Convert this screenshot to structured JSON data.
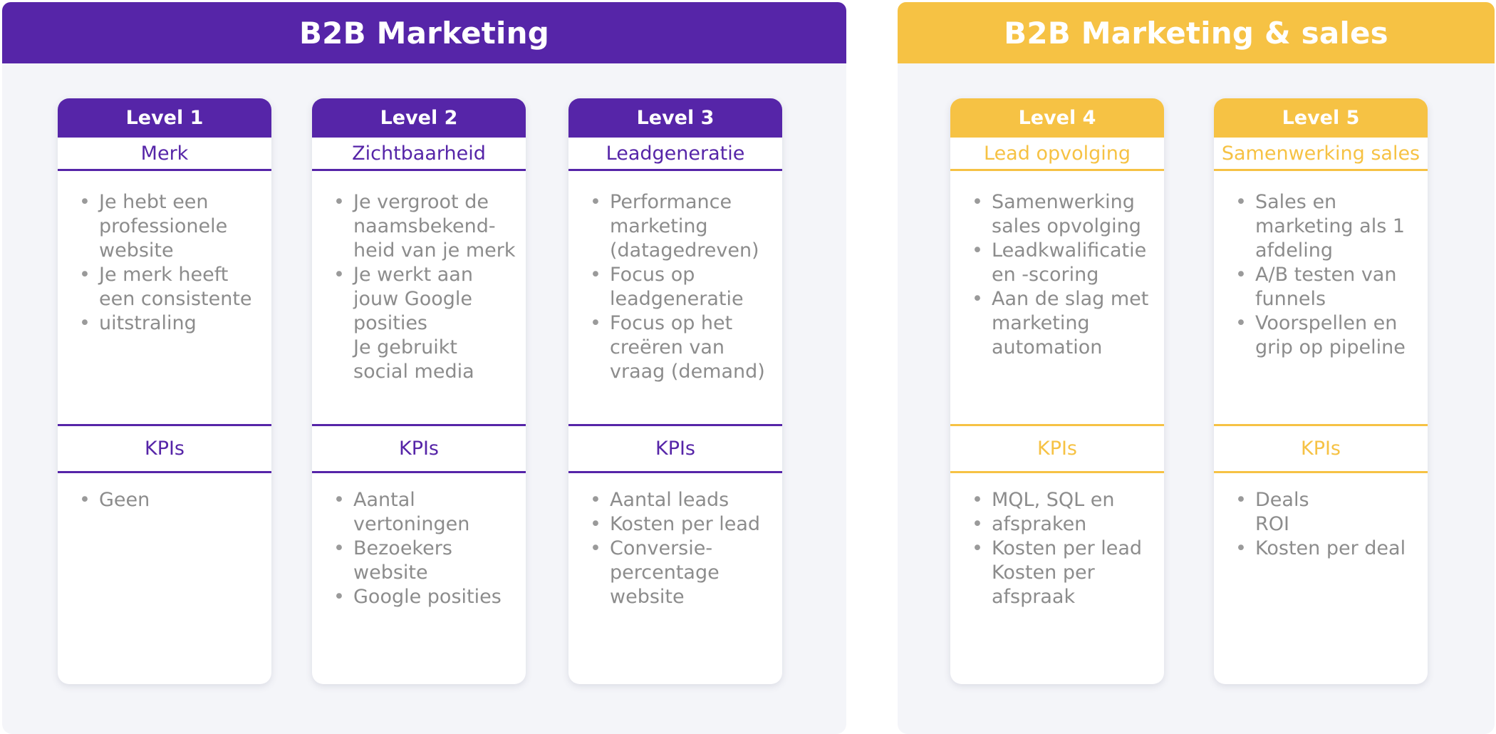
{
  "colors": {
    "purple": "#5625a8",
    "yellow": "#f6c244",
    "panel_bg": "#f4f5f9",
    "text_gray": "#8c8c8c"
  },
  "panels": [
    {
      "title": "B2B Marketing",
      "theme": "purple",
      "cards": [
        {
          "level": "Level 1",
          "subtitle": "Merk",
          "items": [
            {
              "text": "Je hebt een professionele website",
              "bullet": true
            },
            {
              "text": "Je merk heeft een consistente",
              "bullet": true
            },
            {
              "text": "uitstraling",
              "bullet": true
            }
          ],
          "kpi_title": "KPIs",
          "kpis": [
            {
              "text": "Geen",
              "bullet": true
            }
          ]
        },
        {
          "level": "Level 2",
          "subtitle": "Zichtbaarheid",
          "items": [
            {
              "text": "Je vergroot de naamsbekend-heid van je merk",
              "bullet": true
            },
            {
              "text": "Je werkt aan jouw Google posities",
              "bullet": true
            },
            {
              "text": "Je gebruikt social media",
              "bullet": false
            }
          ],
          "kpi_title": "KPIs",
          "kpis": [
            {
              "text": "Aantal vertoningen",
              "bullet": true
            },
            {
              "text": "Bezoekers website",
              "bullet": true
            },
            {
              "text": "Google posities",
              "bullet": true
            }
          ]
        },
        {
          "level": "Level 3",
          "subtitle": "Leadgeneratie",
          "items": [
            {
              "text": "Performance marketing (datagedreven)",
              "bullet": true
            },
            {
              "text": "Focus op leadgeneratie",
              "bullet": true
            },
            {
              "text": "Focus op het creëren van vraag (demand)",
              "bullet": true
            }
          ],
          "kpi_title": "KPIs",
          "kpis": [
            {
              "text": "Aantal leads",
              "bullet": true
            },
            {
              "text": "Kosten per lead",
              "bullet": true
            },
            {
              "text": "Conversie-percentage website",
              "bullet": true
            }
          ]
        }
      ]
    },
    {
      "title": "B2B Marketing & sales",
      "theme": "yellow",
      "cards": [
        {
          "level": "Level 4",
          "subtitle": "Lead opvolging",
          "items": [
            {
              "text": "Samenwerking sales opvolging",
              "bullet": true
            },
            {
              "text": "Leadkwalificatie en -scoring",
              "bullet": true
            },
            {
              "text": "Aan de slag met marketing automation",
              "bullet": true
            }
          ],
          "kpi_title": "KPIs",
          "kpis": [
            {
              "text": "MQL, SQL en",
              "bullet": true
            },
            {
              "text": "afspraken",
              "bullet": true
            },
            {
              "text": "Kosten per lead",
              "bullet": true
            },
            {
              "text": "Kosten per afspraak",
              "bullet": false
            }
          ]
        },
        {
          "level": "Level 5",
          "subtitle": "Samenwerking sales",
          "items": [
            {
              "text": "Sales en marketing als 1 afdeling",
              "bullet": true
            },
            {
              "text": "A/B testen van funnels",
              "bullet": true
            },
            {
              "text": "Voorspellen en grip op pipeline",
              "bullet": true
            }
          ],
          "kpi_title": "KPIs",
          "kpis": [
            {
              "text": "Deals",
              "bullet": true
            },
            {
              "text": "ROI",
              "bullet": false
            },
            {
              "text": "Kosten per deal",
              "bullet": true
            }
          ]
        }
      ]
    }
  ]
}
